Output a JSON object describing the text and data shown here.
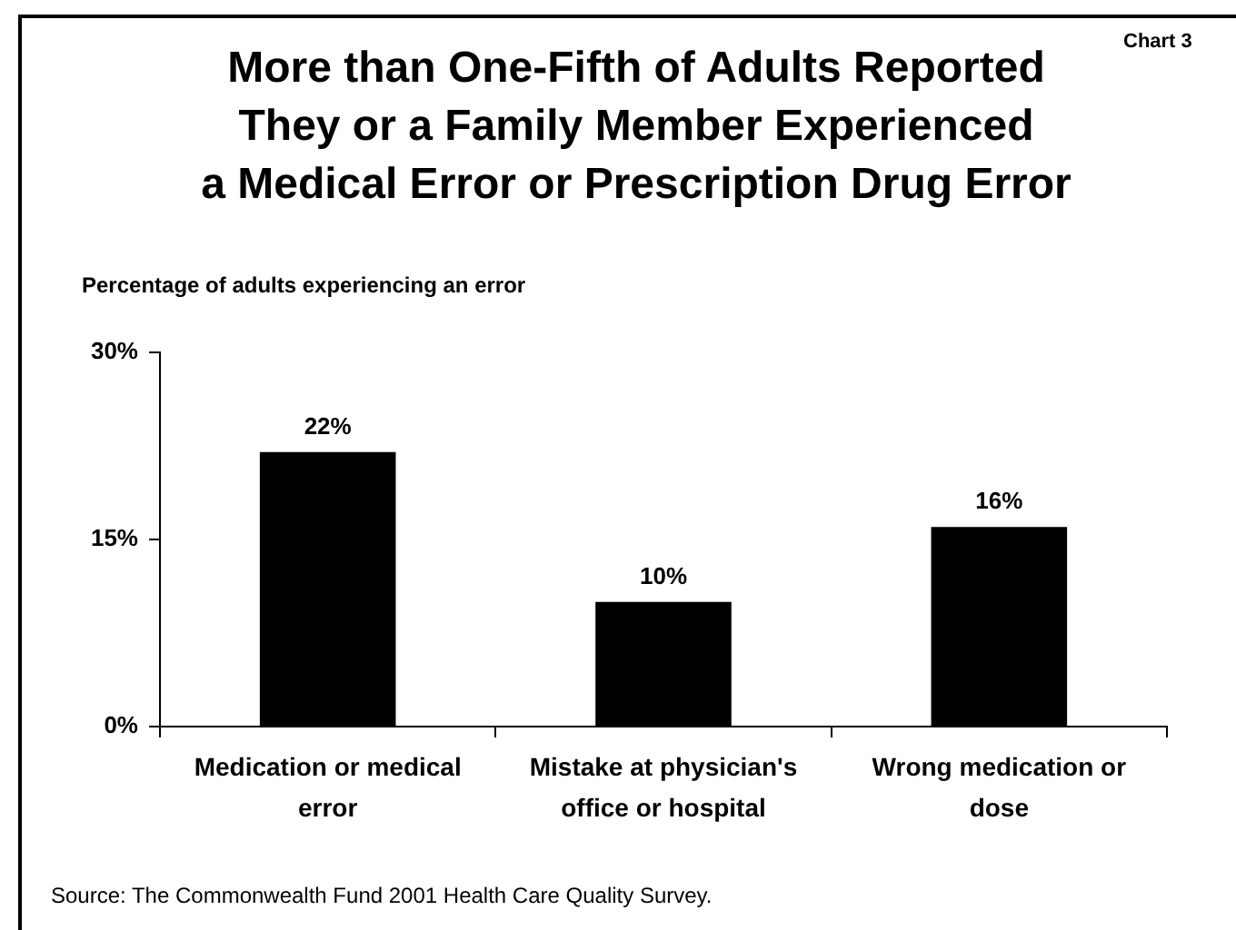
{
  "chart_data": {
    "type": "bar",
    "title": "More than One-Fifth of Adults Reported\nThey or a Family Member Experienced\na Medical Error or Prescription Drug Error",
    "ylabel": "Percentage of adults experiencing an error",
    "annotations": [
      "Chart 3",
      "Source: The Commonwealth Fund 2001 Health Care Quality Survey."
    ],
    "categories": [
      "Medication or medical error",
      "Mistake at physician's office or hospital",
      "Wrong medication or dose"
    ],
    "values": [
      22,
      10,
      16
    ],
    "color": "#000000",
    "value_labels": [
      "22%",
      "10%",
      "16%"
    ],
    "ylim": [
      0,
      30
    ],
    "yticks": [
      {
        "value": 0,
        "label": "0%"
      },
      {
        "value": 15,
        "label": "15%"
      },
      {
        "value": 30,
        "label": "30%"
      }
    ]
  }
}
